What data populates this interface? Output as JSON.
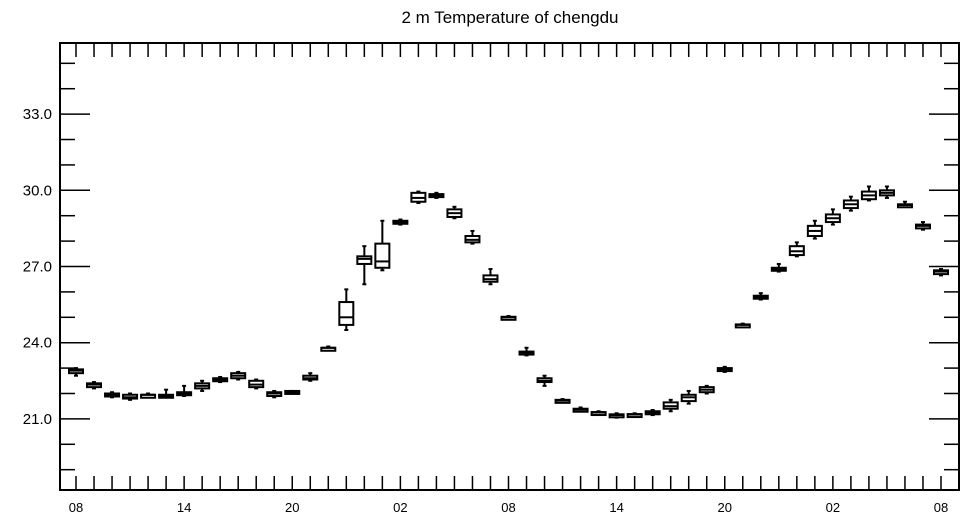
{
  "chart_data": {
    "type": "boxplot",
    "title": "2 m Temperature of chengdu",
    "xlabel": "",
    "ylabel": "",
    "ylim": [
      18.2,
      35.8
    ],
    "y_ticks": [
      "21.0",
      "24.0",
      "27.0",
      "30.0",
      "33.0"
    ],
    "y_tick_values": [
      21.0,
      24.0,
      27.0,
      30.0,
      33.0
    ],
    "x_tick_labels": [
      "08",
      "14",
      "20",
      "02",
      "08",
      "14",
      "20",
      "02",
      "08"
    ],
    "x_tick_hours": [
      0,
      6,
      12,
      18,
      24,
      30,
      36,
      42,
      48
    ],
    "x_minor_step_hours": 1,
    "grid": false,
    "boxes": [
      {
        "hour": 0,
        "min": 22.7,
        "q1": 22.8,
        "median": 22.9,
        "q3": 22.95,
        "max": 23.0
      },
      {
        "hour": 1,
        "min": 22.2,
        "q1": 22.25,
        "median": 22.35,
        "q3": 22.4,
        "max": 22.45
      },
      {
        "hour": 2,
        "min": 21.85,
        "q1": 21.9,
        "median": 21.95,
        "q3": 22.0,
        "max": 22.05
      },
      {
        "hour": 3,
        "min": 21.75,
        "q1": 21.8,
        "median": 21.85,
        "q3": 21.95,
        "max": 22.0
      },
      {
        "hour": 4,
        "min": 21.85,
        "q1": 21.9,
        "median": 21.95,
        "q3": 21.95,
        "max": 22.0
      },
      {
        "hour": 5,
        "min": 21.85,
        "q1": 21.9,
        "median": 21.9,
        "q3": 21.95,
        "max": 22.15
      },
      {
        "hour": 6,
        "min": 21.9,
        "q1": 21.95,
        "median": 22.0,
        "q3": 22.05,
        "max": 22.3
      },
      {
        "hour": 7,
        "min": 22.1,
        "q1": 22.2,
        "median": 22.3,
        "q3": 22.4,
        "max": 22.5
      },
      {
        "hour": 8,
        "min": 22.45,
        "q1": 22.5,
        "median": 22.55,
        "q3": 22.6,
        "max": 22.65
      },
      {
        "hour": 9,
        "min": 22.55,
        "q1": 22.6,
        "median": 22.7,
        "q3": 22.8,
        "max": 22.85
      },
      {
        "hour": 10,
        "min": 22.2,
        "q1": 22.25,
        "median": 22.35,
        "q3": 22.5,
        "max": 22.55
      },
      {
        "hour": 11,
        "min": 21.85,
        "q1": 21.9,
        "median": 22.0,
        "q3": 22.05,
        "max": 22.1
      },
      {
        "hour": 12,
        "min": 22.0,
        "q1": 22.05,
        "median": 22.05,
        "q3": 22.1,
        "max": 22.1
      },
      {
        "hour": 13,
        "min": 22.5,
        "q1": 22.55,
        "median": 22.6,
        "q3": 22.7,
        "max": 22.8
      },
      {
        "hour": 14,
        "min": 23.7,
        "q1": 23.75,
        "median": 23.8,
        "q3": 23.8,
        "max": 23.85
      },
      {
        "hour": 15,
        "min": 24.5,
        "q1": 24.7,
        "median": 25.0,
        "q3": 25.6,
        "max": 26.1
      },
      {
        "hour": 16,
        "min": 26.3,
        "q1": 27.1,
        "median": 27.3,
        "q3": 27.4,
        "max": 27.8
      },
      {
        "hour": 17,
        "min": 26.85,
        "q1": 26.95,
        "median": 27.2,
        "q3": 27.9,
        "max": 28.8
      },
      {
        "hour": 18,
        "min": 28.65,
        "q1": 28.7,
        "median": 28.75,
        "q3": 28.8,
        "max": 28.85
      },
      {
        "hour": 19,
        "min": 29.5,
        "q1": 29.55,
        "median": 29.7,
        "q3": 29.9,
        "max": 29.95
      },
      {
        "hour": 20,
        "min": 29.7,
        "q1": 29.75,
        "median": 29.8,
        "q3": 29.85,
        "max": 29.9
      },
      {
        "hour": 21,
        "min": 28.9,
        "q1": 28.95,
        "median": 29.1,
        "q3": 29.25,
        "max": 29.35
      },
      {
        "hour": 22,
        "min": 27.9,
        "q1": 27.95,
        "median": 28.05,
        "q3": 28.2,
        "max": 28.4
      },
      {
        "hour": 23,
        "min": 26.3,
        "q1": 26.4,
        "median": 26.5,
        "q3": 26.65,
        "max": 26.9
      },
      {
        "hour": 24,
        "min": 24.95,
        "q1": 24.98,
        "median": 25.0,
        "q3": 25.02,
        "max": 25.05
      },
      {
        "hour": 25,
        "min": 23.5,
        "q1": 23.55,
        "median": 23.6,
        "q3": 23.65,
        "max": 23.8
      },
      {
        "hour": 26,
        "min": 22.3,
        "q1": 22.45,
        "median": 22.5,
        "q3": 22.6,
        "max": 22.7
      },
      {
        "hour": 27,
        "min": 21.65,
        "q1": 21.7,
        "median": 21.72,
        "q3": 21.75,
        "max": 21.78
      },
      {
        "hour": 28,
        "min": 21.3,
        "q1": 21.33,
        "median": 21.36,
        "q3": 21.4,
        "max": 21.45
      },
      {
        "hour": 29,
        "min": 21.2,
        "q1": 21.23,
        "median": 21.25,
        "q3": 21.27,
        "max": 21.3
      },
      {
        "hour": 30,
        "min": 21.05,
        "q1": 21.1,
        "median": 21.15,
        "q3": 21.18,
        "max": 21.22
      },
      {
        "hour": 31,
        "min": 21.12,
        "q1": 21.15,
        "median": 21.17,
        "q3": 21.19,
        "max": 21.22
      },
      {
        "hour": 32,
        "min": 21.15,
        "q1": 21.2,
        "median": 21.25,
        "q3": 21.3,
        "max": 21.35
      },
      {
        "hour": 33,
        "min": 21.3,
        "q1": 21.4,
        "median": 21.5,
        "q3": 21.65,
        "max": 21.75
      },
      {
        "hour": 34,
        "min": 21.6,
        "q1": 21.7,
        "median": 21.85,
        "q3": 21.95,
        "max": 22.1
      },
      {
        "hour": 35,
        "min": 22.0,
        "q1": 22.05,
        "median": 22.15,
        "q3": 22.25,
        "max": 22.3
      },
      {
        "hour": 36,
        "min": 22.85,
        "q1": 22.9,
        "median": 22.95,
        "q3": 23.0,
        "max": 23.05
      },
      {
        "hour": 37,
        "min": 24.65,
        "q1": 24.67,
        "median": 24.7,
        "q3": 24.72,
        "max": 24.75
      },
      {
        "hour": 38,
        "min": 25.7,
        "q1": 25.75,
        "median": 25.8,
        "q3": 25.85,
        "max": 25.95
      },
      {
        "hour": 39,
        "min": 26.8,
        "q1": 26.85,
        "median": 26.9,
        "q3": 26.95,
        "max": 27.1
      },
      {
        "hour": 40,
        "min": 27.4,
        "q1": 27.45,
        "median": 27.6,
        "q3": 27.8,
        "max": 27.95
      },
      {
        "hour": 41,
        "min": 28.1,
        "q1": 28.2,
        "median": 28.4,
        "q3": 28.6,
        "max": 28.8
      },
      {
        "hour": 42,
        "min": 28.65,
        "q1": 28.75,
        "median": 28.9,
        "q3": 29.05,
        "max": 29.25
      },
      {
        "hour": 43,
        "min": 29.2,
        "q1": 29.3,
        "median": 29.45,
        "q3": 29.6,
        "max": 29.75
      },
      {
        "hour": 44,
        "min": 29.6,
        "q1": 29.65,
        "median": 29.8,
        "q3": 29.95,
        "max": 30.15
      },
      {
        "hour": 45,
        "min": 29.7,
        "q1": 29.8,
        "median": 29.9,
        "q3": 30.0,
        "max": 30.15
      },
      {
        "hour": 46,
        "min": 29.35,
        "q1": 29.4,
        "median": 29.42,
        "q3": 29.45,
        "max": 29.55
      },
      {
        "hour": 47,
        "min": 28.45,
        "q1": 28.5,
        "median": 28.6,
        "q3": 28.65,
        "max": 28.75
      },
      {
        "hour": 48,
        "min": 26.65,
        "q1": 26.7,
        "median": 26.8,
        "q3": 26.85,
        "max": 26.9
      }
    ]
  }
}
